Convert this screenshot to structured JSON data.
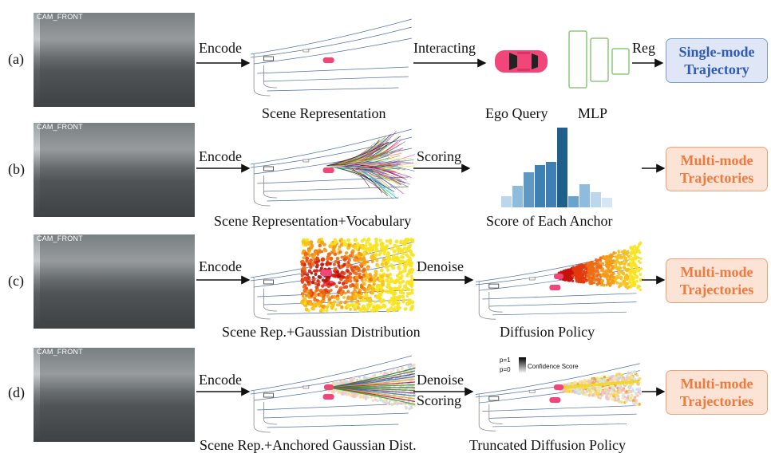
{
  "rows": [
    {
      "label": "(a)",
      "cam_label": "CAM_FRONT",
      "encode": "Encode",
      "caption1": "Scene Representation",
      "action": "Interacting",
      "caption2": "Ego Query",
      "caption3": "MLP",
      "action2": "Reg",
      "output": [
        "Single-mode",
        "Trajectory"
      ]
    },
    {
      "label": "(b)",
      "cam_label": "CAM_FRONT",
      "encode": "Encode",
      "caption1": "Scene Representation+Vocabulary",
      "action": "Scoring",
      "caption2": "Score of Each Anchor",
      "output": [
        "Multi-mode",
        "Trajectories"
      ]
    },
    {
      "label": "(c)",
      "cam_label": "CAM_FRONT",
      "encode": "Encode",
      "caption1": "Scene Rep.+Gaussian Distribution",
      "action": "Denoise",
      "caption2": "Diffusion Policy",
      "output": [
        "Multi-mode",
        "Trajectories"
      ]
    },
    {
      "label": "(d)",
      "cam_label": "CAM_FRONT",
      "encode": "Encode",
      "caption1": "Scene Rep.+Anchored Gaussian Dist.",
      "action": "Denoise",
      "action2": "Scoring",
      "caption2": "Truncated Diffusion Policy",
      "legend_top": "p=1",
      "legend_bottom": "p=0",
      "legend_title": "Confidence Score",
      "output": [
        "Multi-mode",
        "Trajectories"
      ]
    }
  ],
  "colors": {
    "single_text": "#2f5bb7",
    "single_bg": "#dfe7f6",
    "multi_text": "#ee7a3e",
    "multi_bg": "#fbe4d6",
    "mlp_green": "#8cc97a",
    "car_pink": "#f0467a",
    "bar_blue": "#2f6fa0"
  },
  "score_bars": [
    0.14,
    0.27,
    0.44,
    0.53,
    0.57,
    1.0,
    0.14,
    0.29,
    0.19,
    0.12
  ]
}
